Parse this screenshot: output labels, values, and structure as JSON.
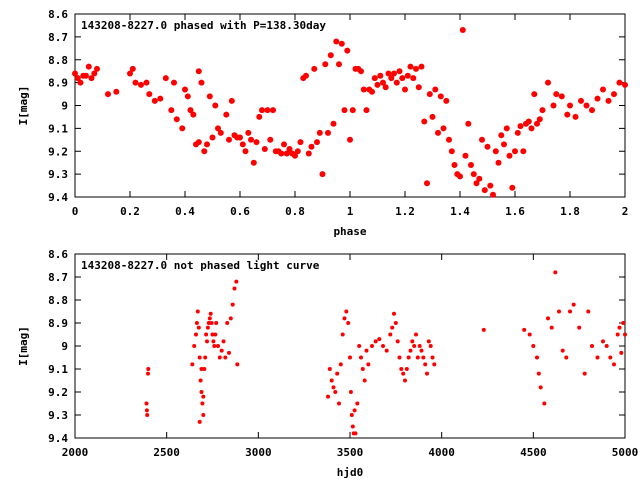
{
  "colors": {
    "points": "#ff0000",
    "axis": "#000000",
    "background": "#ffffff"
  },
  "chart_data": [
    {
      "type": "scatter",
      "title": "143208-8227.0 phased with P=138.30day",
      "xlabel": "phase",
      "ylabel": "I[mag]",
      "xlim": [
        0,
        2
      ],
      "ylim": [
        9.4,
        8.6
      ],
      "y_inverted": true,
      "grid": false,
      "x_ticks": [
        "0",
        "0.2",
        "0.4",
        "0.6",
        "0.8",
        "1",
        "1.2",
        "1.4",
        "1.6",
        "1.8",
        "2"
      ],
      "y_ticks": [
        "8.6",
        "8.7",
        "8.8",
        "8.9",
        "9",
        "9.1",
        "9.2",
        "9.3",
        "9.4"
      ],
      "points": [
        [
          0.0,
          8.86
        ],
        [
          0.01,
          8.88
        ],
        [
          0.02,
          8.9
        ],
        [
          0.03,
          8.87
        ],
        [
          0.04,
          8.87
        ],
        [
          0.05,
          8.83
        ],
        [
          0.06,
          8.88
        ],
        [
          0.07,
          8.86
        ],
        [
          0.08,
          8.84
        ],
        [
          0.12,
          8.95
        ],
        [
          0.15,
          8.94
        ],
        [
          0.2,
          8.86
        ],
        [
          0.21,
          8.84
        ],
        [
          0.22,
          8.9
        ],
        [
          0.24,
          8.91
        ],
        [
          0.26,
          8.9
        ],
        [
          0.27,
          8.95
        ],
        [
          0.29,
          8.98
        ],
        [
          0.31,
          8.97
        ],
        [
          0.33,
          8.88
        ],
        [
          0.35,
          9.02
        ],
        [
          0.36,
          8.9
        ],
        [
          0.37,
          9.06
        ],
        [
          0.39,
          9.1
        ],
        [
          0.4,
          8.93
        ],
        [
          0.41,
          8.96
        ],
        [
          0.42,
          9.02
        ],
        [
          0.43,
          9.04
        ],
        [
          0.44,
          9.17
        ],
        [
          0.45,
          8.85
        ],
        [
          0.45,
          9.16
        ],
        [
          0.46,
          8.9
        ],
        [
          0.47,
          9.2
        ],
        [
          0.48,
          9.17
        ],
        [
          0.49,
          8.96
        ],
        [
          0.5,
          9.14
        ],
        [
          0.51,
          9.0
        ],
        [
          0.52,
          9.1
        ],
        [
          0.53,
          9.12
        ],
        [
          0.55,
          9.04
        ],
        [
          0.56,
          9.15
        ],
        [
          0.57,
          8.98
        ],
        [
          0.58,
          9.13
        ],
        [
          0.59,
          9.14
        ],
        [
          0.6,
          9.14
        ],
        [
          0.61,
          9.17
        ],
        [
          0.62,
          9.2
        ],
        [
          0.63,
          9.12
        ],
        [
          0.64,
          9.15
        ],
        [
          0.65,
          9.25
        ],
        [
          0.66,
          9.16
        ],
        [
          0.67,
          9.05
        ],
        [
          0.68,
          9.02
        ],
        [
          0.69,
          9.19
        ],
        [
          0.7,
          9.02
        ],
        [
          0.71,
          9.15
        ],
        [
          0.72,
          9.02
        ],
        [
          0.73,
          9.2
        ],
        [
          0.74,
          9.2
        ],
        [
          0.75,
          9.21
        ],
        [
          0.76,
          9.17
        ],
        [
          0.77,
          9.21
        ],
        [
          0.78,
          9.19
        ],
        [
          0.79,
          9.21
        ],
        [
          0.8,
          9.22
        ],
        [
          0.81,
          9.2
        ],
        [
          0.82,
          9.16
        ],
        [
          0.83,
          8.88
        ],
        [
          0.84,
          8.87
        ],
        [
          0.85,
          9.21
        ],
        [
          0.86,
          9.18
        ],
        [
          0.87,
          8.84
        ],
        [
          0.88,
          9.16
        ],
        [
          0.89,
          9.12
        ],
        [
          0.9,
          9.3
        ],
        [
          0.91,
          8.82
        ],
        [
          0.92,
          9.12
        ],
        [
          0.93,
          8.78
        ],
        [
          0.94,
          9.08
        ],
        [
          0.95,
          8.72
        ],
        [
          0.96,
          8.82
        ],
        [
          0.97,
          8.73
        ],
        [
          0.98,
          9.02
        ],
        [
          0.99,
          8.76
        ],
        [
          1.0,
          9.15
        ],
        [
          1.01,
          9.02
        ],
        [
          1.02,
          8.84
        ],
        [
          1.03,
          8.84
        ],
        [
          1.04,
          8.85
        ],
        [
          1.05,
          8.93
        ],
        [
          1.06,
          9.02
        ],
        [
          1.07,
          8.93
        ],
        [
          1.08,
          8.94
        ],
        [
          1.09,
          8.88
        ],
        [
          1.1,
          8.91
        ],
        [
          1.11,
          8.87
        ],
        [
          1.12,
          8.9
        ],
        [
          1.13,
          8.92
        ],
        [
          1.14,
          8.86
        ],
        [
          1.15,
          8.88
        ],
        [
          1.16,
          8.86
        ],
        [
          1.17,
          8.9
        ],
        [
          1.18,
          8.85
        ],
        [
          1.19,
          8.88
        ],
        [
          1.2,
          8.93
        ],
        [
          1.21,
          8.87
        ],
        [
          1.22,
          8.83
        ],
        [
          1.23,
          8.88
        ],
        [
          1.24,
          8.84
        ],
        [
          1.25,
          8.92
        ],
        [
          1.26,
          8.83
        ],
        [
          1.27,
          9.07
        ],
        [
          1.28,
          9.34
        ],
        [
          1.29,
          8.95
        ],
        [
          1.3,
          9.05
        ],
        [
          1.31,
          8.93
        ],
        [
          1.32,
          9.12
        ],
        [
          1.33,
          8.96
        ],
        [
          1.34,
          9.1
        ],
        [
          1.35,
          8.98
        ],
        [
          1.36,
          9.15
        ],
        [
          1.37,
          9.2
        ],
        [
          1.38,
          9.26
        ],
        [
          1.39,
          9.3
        ],
        [
          1.4,
          9.31
        ],
        [
          1.41,
          8.67
        ],
        [
          1.42,
          9.22
        ],
        [
          1.43,
          9.08
        ],
        [
          1.44,
          9.26
        ],
        [
          1.45,
          9.3
        ],
        [
          1.46,
          9.34
        ],
        [
          1.47,
          9.32
        ],
        [
          1.48,
          9.15
        ],
        [
          1.49,
          9.37
        ],
        [
          1.5,
          9.18
        ],
        [
          1.51,
          9.35
        ],
        [
          1.52,
          9.39
        ],
        [
          1.53,
          9.2
        ],
        [
          1.54,
          9.25
        ],
        [
          1.55,
          9.13
        ],
        [
          1.56,
          9.17
        ],
        [
          1.57,
          9.1
        ],
        [
          1.58,
          9.22
        ],
        [
          1.59,
          9.36
        ],
        [
          1.6,
          9.2
        ],
        [
          1.61,
          9.12
        ],
        [
          1.62,
          9.09
        ],
        [
          1.63,
          9.2
        ],
        [
          1.64,
          9.08
        ],
        [
          1.65,
          9.07
        ],
        [
          1.66,
          9.1
        ],
        [
          1.67,
          8.95
        ],
        [
          1.68,
          9.08
        ],
        [
          1.69,
          9.06
        ],
        [
          1.7,
          9.02
        ],
        [
          1.72,
          8.9
        ],
        [
          1.74,
          9.0
        ],
        [
          1.75,
          8.95
        ],
        [
          1.77,
          8.96
        ],
        [
          1.79,
          9.04
        ],
        [
          1.8,
          9.0
        ],
        [
          1.82,
          9.05
        ],
        [
          1.84,
          8.98
        ],
        [
          1.86,
          9.0
        ],
        [
          1.88,
          9.02
        ],
        [
          1.9,
          8.97
        ],
        [
          1.92,
          8.93
        ],
        [
          1.94,
          8.98
        ],
        [
          1.96,
          8.95
        ],
        [
          1.98,
          8.9
        ],
        [
          2.0,
          8.91
        ]
      ]
    },
    {
      "type": "scatter",
      "title": "143208-8227.0 not phased light curve",
      "xlabel": "hjd0",
      "ylabel": "I[mag]",
      "xlim": [
        2000,
        5000
      ],
      "ylim": [
        9.4,
        8.6
      ],
      "y_inverted": true,
      "grid": false,
      "x_ticks": [
        "2000",
        "2500",
        "3000",
        "3500",
        "4000",
        "4500",
        "5000"
      ],
      "y_ticks": [
        "8.6",
        "8.7",
        "8.8",
        "8.9",
        "9",
        "9.1",
        "9.2",
        "9.3",
        "9.4"
      ],
      "points": [
        [
          2390,
          9.25
        ],
        [
          2392,
          9.28
        ],
        [
          2394,
          9.3
        ],
        [
          2398,
          9.12
        ],
        [
          2400,
          9.1
        ],
        [
          2640,
          9.08
        ],
        [
          2650,
          9.0
        ],
        [
          2660,
          8.95
        ],
        [
          2665,
          8.9
        ],
        [
          2670,
          8.85
        ],
        [
          2675,
          8.92
        ],
        [
          2680,
          9.05
        ],
        [
          2685,
          9.15
        ],
        [
          2690,
          9.2
        ],
        [
          2695,
          9.25
        ],
        [
          2700,
          9.3
        ],
        [
          2705,
          9.1
        ],
        [
          2710,
          9.05
        ],
        [
          2715,
          8.95
        ],
        [
          2720,
          8.98
        ],
        [
          2725,
          8.92
        ],
        [
          2730,
          8.9
        ],
        [
          2735,
          8.88
        ],
        [
          2740,
          8.86
        ],
        [
          2745,
          8.9
        ],
        [
          2750,
          8.95
        ],
        [
          2755,
          8.98
        ],
        [
          2760,
          9.0
        ],
        [
          2765,
          8.95
        ],
        [
          2770,
          8.9
        ],
        [
          2780,
          9.0
        ],
        [
          2790,
          9.05
        ],
        [
          2800,
          9.02
        ],
        [
          2810,
          8.98
        ],
        [
          2820,
          9.05
        ],
        [
          2830,
          8.9
        ],
        [
          2840,
          9.03
        ],
        [
          2850,
          8.88
        ],
        [
          2860,
          8.82
        ],
        [
          2870,
          8.75
        ],
        [
          2880,
          8.72
        ],
        [
          2885,
          9.08
        ],
        [
          2680,
          9.33
        ],
        [
          2690,
          9.1
        ],
        [
          2700,
          9.22
        ],
        [
          3380,
          9.22
        ],
        [
          3390,
          9.1
        ],
        [
          3400,
          9.15
        ],
        [
          3410,
          9.18
        ],
        [
          3420,
          9.2
        ],
        [
          3430,
          9.12
        ],
        [
          3440,
          9.25
        ],
        [
          3450,
          9.08
        ],
        [
          3460,
          8.95
        ],
        [
          3470,
          8.88
        ],
        [
          3480,
          8.85
        ],
        [
          3490,
          8.9
        ],
        [
          3500,
          9.05
        ],
        [
          3505,
          9.2
        ],
        [
          3510,
          9.3
        ],
        [
          3515,
          9.35
        ],
        [
          3520,
          9.38
        ],
        [
          3525,
          9.28
        ],
        [
          3530,
          9.38
        ],
        [
          3540,
          9.25
        ],
        [
          3550,
          9.0
        ],
        [
          3560,
          9.05
        ],
        [
          3570,
          9.1
        ],
        [
          3580,
          9.15
        ],
        [
          3590,
          9.02
        ],
        [
          3600,
          9.08
        ],
        [
          3620,
          9.0
        ],
        [
          3640,
          8.98
        ],
        [
          3660,
          8.97
        ],
        [
          3680,
          9.0
        ],
        [
          3700,
          9.02
        ],
        [
          3720,
          8.95
        ],
        [
          3730,
          8.92
        ],
        [
          3740,
          8.86
        ],
        [
          3750,
          8.9
        ],
        [
          3760,
          8.98
        ],
        [
          3770,
          9.05
        ],
        [
          3780,
          9.1
        ],
        [
          3790,
          9.12
        ],
        [
          3800,
          9.15
        ],
        [
          3810,
          9.1
        ],
        [
          3820,
          9.05
        ],
        [
          3830,
          9.02
        ],
        [
          3840,
          8.98
        ],
        [
          3850,
          9.0
        ],
        [
          3860,
          8.95
        ],
        [
          3870,
          9.05
        ],
        [
          3880,
          9.0
        ],
        [
          3890,
          9.02
        ],
        [
          3900,
          9.05
        ],
        [
          3910,
          9.08
        ],
        [
          3920,
          9.12
        ],
        [
          3930,
          8.98
        ],
        [
          3940,
          9.0
        ],
        [
          3950,
          9.05
        ],
        [
          3960,
          9.08
        ],
        [
          4230,
          8.93
        ],
        [
          4450,
          8.93
        ],
        [
          4480,
          8.95
        ],
        [
          4500,
          9.0
        ],
        [
          4520,
          9.05
        ],
        [
          4530,
          9.12
        ],
        [
          4540,
          9.18
        ],
        [
          4560,
          9.25
        ],
        [
          4580,
          8.88
        ],
        [
          4600,
          8.92
        ],
        [
          4620,
          8.68
        ],
        [
          4640,
          8.85
        ],
        [
          4660,
          9.02
        ],
        [
          4680,
          9.05
        ],
        [
          4700,
          8.85
        ],
        [
          4720,
          8.82
        ],
        [
          4750,
          8.92
        ],
        [
          4780,
          9.12
        ],
        [
          4800,
          8.85
        ],
        [
          4820,
          9.0
        ],
        [
          4850,
          9.05
        ],
        [
          4880,
          8.98
        ],
        [
          4900,
          9.0
        ],
        [
          4920,
          9.05
        ],
        [
          4940,
          9.08
        ],
        [
          4960,
          8.95
        ],
        [
          4970,
          8.92
        ],
        [
          4980,
          9.03
        ],
        [
          4990,
          8.9
        ],
        [
          5000,
          8.95
        ]
      ]
    }
  ]
}
